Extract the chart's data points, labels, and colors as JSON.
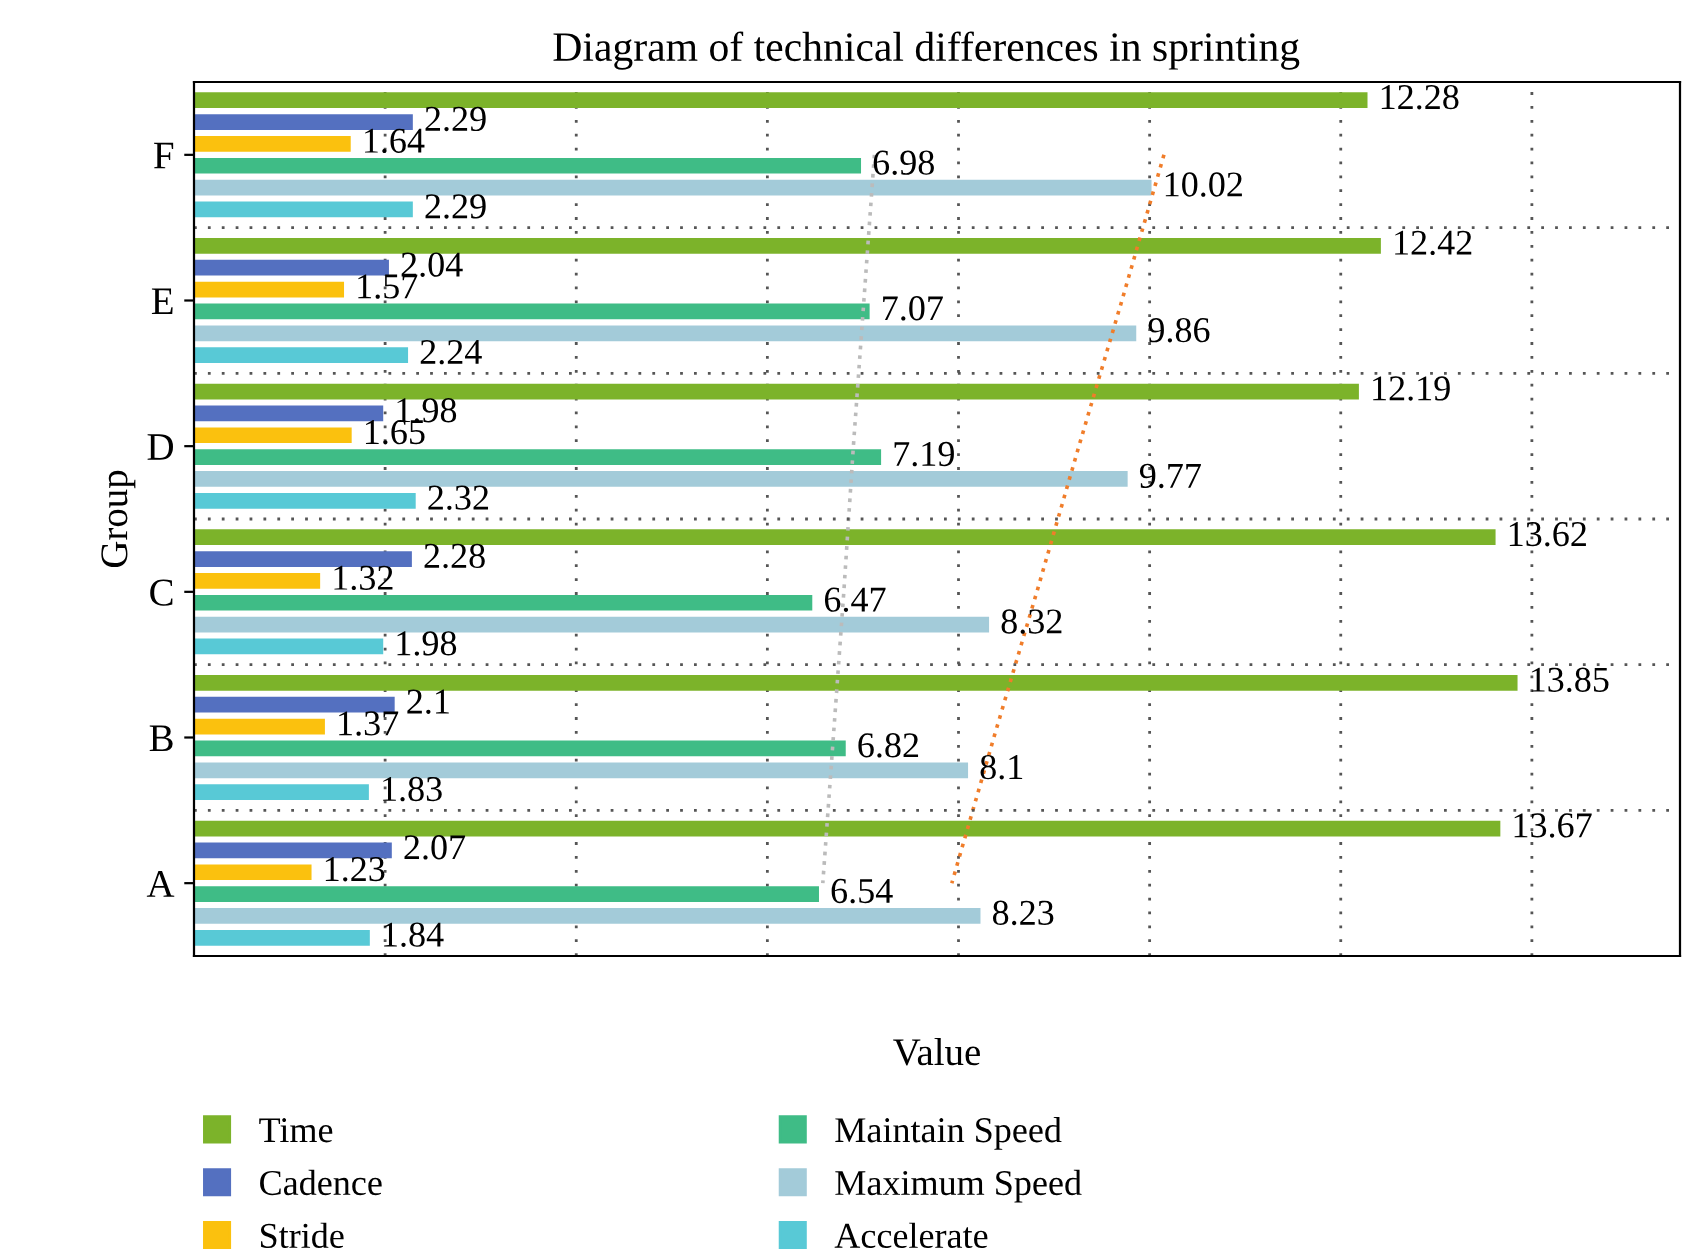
{
  "chart_data": {
    "type": "bar",
    "orientation": "horizontal",
    "title": "Diagram of technical differences in sprinting",
    "xlabel": "Value",
    "ylabel": "Group",
    "categories": [
      "F",
      "E",
      "D",
      "C",
      "B",
      "A"
    ],
    "series": [
      {
        "name": "Time",
        "color": "#7cb32a",
        "values": [
          12.28,
          12.42,
          12.19,
          13.62,
          13.85,
          13.67
        ],
        "value_labels": [
          "12.28",
          "12.42",
          "12.19",
          "13.62",
          "13.85",
          "13.67"
        ]
      },
      {
        "name": "Cadence",
        "color": "#5470c0",
        "values": [
          2.29,
          2.04,
          1.98,
          2.28,
          2.1,
          2.07
        ],
        "value_labels": [
          "2.29",
          "2.04",
          "1.98",
          "2.28",
          "2.1",
          "2.07"
        ]
      },
      {
        "name": "Stride",
        "color": "#fbc10e",
        "values": [
          1.64,
          1.57,
          1.65,
          1.32,
          1.37,
          1.23
        ],
        "value_labels": [
          "1.64",
          "1.57",
          "1.65",
          "1.32",
          "1.37",
          "1.23"
        ]
      },
      {
        "name": "Maintain Speed",
        "color": "#3fbc86",
        "values": [
          6.98,
          7.07,
          7.19,
          6.47,
          6.82,
          6.54
        ],
        "value_labels": [
          "6.98",
          "7.07",
          "7.19",
          "6.47",
          "6.82",
          "6.54"
        ]
      },
      {
        "name": "Maximum Speed",
        "color": "#a3cbd9",
        "values": [
          10.02,
          9.86,
          9.77,
          8.32,
          8.1,
          8.23
        ],
        "value_labels": [
          "10.02",
          "9.86",
          "9.77",
          "8.32",
          "8.1",
          "8.23"
        ]
      },
      {
        "name": "Accelerate",
        "color": "#58c9d6",
        "values": [
          2.29,
          2.24,
          2.32,
          1.98,
          1.83,
          1.84
        ],
        "value_labels": [
          "2.29",
          "2.24",
          "2.32",
          "1.98",
          "1.83",
          "1.84"
        ]
      },
      {
        "type": "line",
        "color": "#bbbbbb",
        "line_style": "dotted",
        "values": [
          7.12,
          7.01,
          6.9,
          6.8,
          6.69,
          6.58
        ]
      },
      {
        "type": "line",
        "color": "#f07d2a",
        "line_style": "dotted",
        "values": [
          10.15,
          9.71,
          9.26,
          8.82,
          8.37,
          7.93
        ]
      }
    ],
    "xlim": [
      0,
      15.55
    ],
    "xticks": [
      {
        "value": 2,
        "label": null
      },
      {
        "value": 4,
        "label": null
      },
      {
        "value": 6,
        "label": null
      },
      {
        "value": 8,
        "label": null
      },
      {
        "value": 10,
        "label": null
      },
      {
        "value": 12,
        "label": null
      },
      {
        "value": 14,
        "label": null
      }
    ],
    "grid": "x",
    "legend": "bottom"
  }
}
